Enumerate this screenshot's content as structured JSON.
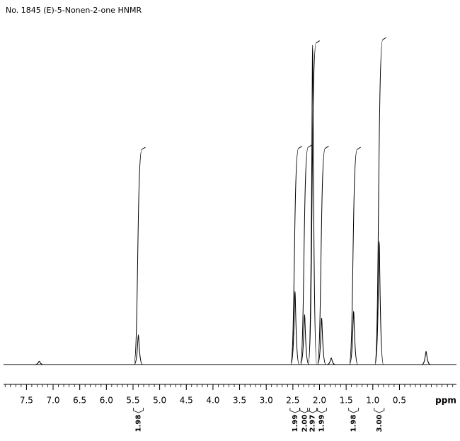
{
  "chart_data": {
    "type": "nmr",
    "title": "No. 1845 (E)-5-Nonen-2-one HNMR",
    "x_label": "ppm",
    "xlim": [
      7.93,
      -0.57
    ],
    "ylim": [
      0,
      100
    ],
    "xticks": [
      7.5,
      {
        "value": 7,
        "label": "7.0"
      },
      6.5,
      {
        "value": 6,
        "label": "6.0"
      },
      5.5,
      {
        "value": 5,
        "label": "5.0"
      },
      4.5,
      {
        "value": 4,
        "label": "4.0"
      },
      3.5,
      {
        "value": 3,
        "label": "3.0"
      },
      2.5,
      {
        "value": 2,
        "label": "2.0"
      },
      1.5,
      {
        "value": 1,
        "label": "1.0"
      },
      0.5
    ],
    "minor_xticks": [
      7.9,
      7.8,
      7.7,
      7.6,
      7.5,
      7.4,
      7.3,
      7.2,
      7.1,
      7,
      6.9,
      6.8,
      6.7,
      6.6,
      6.5,
      6.4,
      6.3,
      6.2,
      6.1,
      6,
      5.9,
      5.8,
      5.7,
      5.6,
      5.5,
      5.4,
      5.3,
      5.2,
      5.1,
      5,
      4.9,
      4.8,
      4.7,
      4.6,
      4.5,
      4.4,
      4.3,
      4.2,
      4.1,
      4,
      3.9,
      3.8,
      3.7,
      3.6,
      3.5,
      3.4,
      3.3,
      3.2,
      3.1,
      3,
      2.9,
      2.8,
      2.7,
      2.6,
      2.5,
      2.4,
      2.3,
      2.2,
      2.1,
      2,
      1.9,
      1.8,
      1.7,
      1.6,
      1.5,
      1.4,
      1.3,
      1.2,
      1.1,
      1,
      0.9,
      0.8,
      0.7,
      0.6,
      0.5,
      0.4,
      0.3,
      0.2,
      0.1,
      0,
      -0.1,
      -0.2,
      -0.3,
      -0.4,
      -0.5
    ],
    "peaks": {
      "shifts": [
        7.26,
        5.4,
        2.46,
        2.28,
        2.13,
        1.96,
        1.78,
        1.36,
        0.88,
        0.0
      ],
      "heights": [
        1,
        9,
        22,
        15,
        96,
        14,
        2,
        16,
        37,
        4
      ]
    },
    "integrals": {
      "shifts": [
        5.4,
        2.46,
        2.28,
        2.13,
        1.96,
        1.36,
        0.88
      ],
      "values": [
        1.98,
        1.99,
        2,
        2.97,
        1.99,
        1.98,
        3
      ],
      "value_labels": [
        "1.98",
        "1.99",
        "2.00",
        "2.97",
        "1.99",
        "1.98",
        "3.00"
      ]
    },
    "color": "#000000"
  }
}
